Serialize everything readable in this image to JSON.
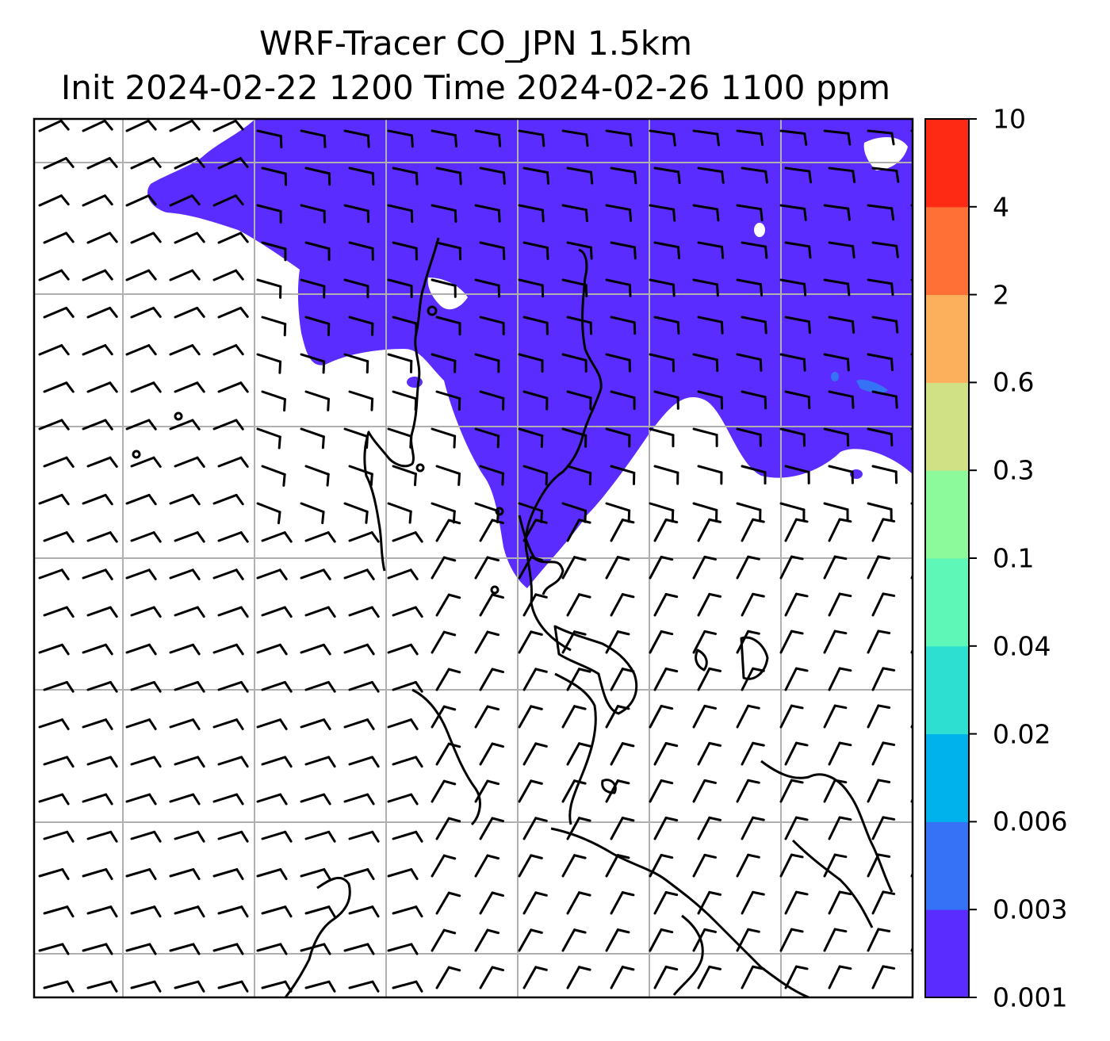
{
  "title": {
    "line1": "WRF-Tracer CO_JPN 1.5km",
    "line2": "Init 2024-02-22 1200 Time 2024-02-26 1100 ppm"
  },
  "colorbar": {
    "ticks": [
      "0.001",
      "0.003",
      "0.006",
      "0.02",
      "0.04",
      "0.1",
      "0.3",
      "0.6",
      "2",
      "4",
      "10"
    ],
    "colors": [
      "#5b2cff",
      "#3572f5",
      "#00b2eb",
      "#2ddfd1",
      "#5ef7b8",
      "#8cf99a",
      "#cfe085",
      "#fdb05c",
      "#ff7036",
      "#ff2a14"
    ]
  },
  "map": {
    "field": "CO tracer concentration",
    "plume_color": "#5b2cff",
    "wind_barbs": "wind barbs"
  }
}
